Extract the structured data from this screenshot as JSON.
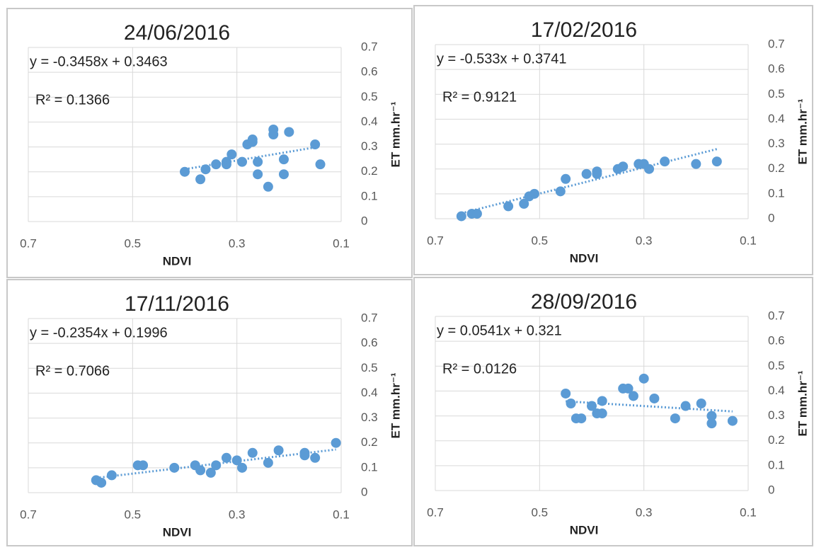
{
  "chart_data": [
    {
      "type": "scatter",
      "title": "24/06/2016",
      "x_label": "NDVI",
      "y_label": "ET  mm.hr⁻¹",
      "annotations": [
        "y = -0.3458x + 0.3463",
        "R² = 0.1366"
      ],
      "color": "#5b9bd5",
      "grid": true,
      "trendline": true,
      "xlim": [
        0.7,
        0.1
      ],
      "xticks": [
        0.7,
        0.5,
        0.3,
        0.1
      ],
      "ylim": [
        0,
        0.7
      ],
      "yticks": [
        0,
        0.1,
        0.2,
        0.3,
        0.4,
        0.5,
        0.6,
        0.7
      ],
      "x": [
        0.4,
        0.37,
        0.36,
        0.34,
        0.32,
        0.32,
        0.31,
        0.29,
        0.28,
        0.27,
        0.27,
        0.26,
        0.26,
        0.23,
        0.23,
        0.24,
        0.21,
        0.21,
        0.2,
        0.15,
        0.14
      ],
      "values": [
        0.2,
        0.17,
        0.21,
        0.23,
        0.24,
        0.23,
        0.27,
        0.24,
        0.31,
        0.32,
        0.33,
        0.19,
        0.24,
        0.35,
        0.37,
        0.14,
        0.19,
        0.25,
        0.36,
        0.31,
        0.23
      ]
    },
    {
      "type": "scatter",
      "title": "17/02/2016",
      "x_label": "NDVI",
      "y_label": "ET  mm.hr⁻¹",
      "annotations": [
        "y = -0.533x + 0.3741",
        "R² = 0.9121"
      ],
      "color": "#5b9bd5",
      "grid": true,
      "trendline": true,
      "xlim": [
        0.7,
        0.1
      ],
      "xticks": [
        0.7,
        0.5,
        0.3,
        0.1
      ],
      "ylim": [
        0,
        0.7
      ],
      "yticks": [
        0,
        0.1,
        0.2,
        0.3,
        0.4,
        0.5,
        0.6,
        0.7
      ],
      "x": [
        0.65,
        0.63,
        0.62,
        0.56,
        0.53,
        0.52,
        0.51,
        0.46,
        0.45,
        0.41,
        0.39,
        0.39,
        0.35,
        0.34,
        0.31,
        0.3,
        0.29,
        0.26,
        0.2,
        0.16
      ],
      "values": [
        0.01,
        0.02,
        0.02,
        0.05,
        0.06,
        0.09,
        0.1,
        0.11,
        0.16,
        0.18,
        0.18,
        0.19,
        0.2,
        0.21,
        0.22,
        0.22,
        0.2,
        0.23,
        0.22,
        0.23
      ]
    },
    {
      "type": "scatter",
      "title": "17/11/2016",
      "x_label": "NDVI",
      "y_label": "ET  mm.hr⁻¹",
      "annotations": [
        "y = -0.2354x + 0.1996",
        "R² = 0.7066"
      ],
      "color": "#5b9bd5",
      "grid": true,
      "trendline": true,
      "xlim": [
        0.7,
        0.1
      ],
      "xticks": [
        0.7,
        0.5,
        0.3,
        0.1
      ],
      "ylim": [
        0,
        0.7
      ],
      "yticks": [
        0,
        0.1,
        0.2,
        0.3,
        0.4,
        0.5,
        0.6,
        0.7
      ],
      "x": [
        0.57,
        0.56,
        0.54,
        0.49,
        0.48,
        0.42,
        0.38,
        0.37,
        0.35,
        0.34,
        0.32,
        0.3,
        0.29,
        0.27,
        0.24,
        0.22,
        0.17,
        0.17,
        0.15,
        0.11
      ],
      "values": [
        0.05,
        0.04,
        0.07,
        0.11,
        0.11,
        0.1,
        0.11,
        0.09,
        0.08,
        0.11,
        0.14,
        0.13,
        0.1,
        0.16,
        0.12,
        0.17,
        0.16,
        0.15,
        0.14,
        0.2
      ]
    },
    {
      "type": "scatter",
      "title": "28/09/2016",
      "x_label": "NDVI",
      "y_label": "ET  mm.hr⁻¹",
      "annotations": [
        "y = 0.0541x + 0.321",
        "R² = 0.0126"
      ],
      "color": "#5b9bd5",
      "grid": true,
      "trendline": true,
      "xlim": [
        0.7,
        0.1
      ],
      "xticks": [
        0.7,
        0.5,
        0.3,
        0.1
      ],
      "ylim": [
        0,
        0.7
      ],
      "yticks": [
        0,
        0.1,
        0.2,
        0.3,
        0.4,
        0.5,
        0.6,
        0.7
      ],
      "x": [
        0.45,
        0.44,
        0.43,
        0.42,
        0.4,
        0.39,
        0.38,
        0.38,
        0.34,
        0.33,
        0.32,
        0.3,
        0.28,
        0.22,
        0.24,
        0.19,
        0.17,
        0.17,
        0.13
      ],
      "values": [
        0.39,
        0.35,
        0.29,
        0.29,
        0.34,
        0.31,
        0.31,
        0.36,
        0.41,
        0.41,
        0.38,
        0.45,
        0.37,
        0.34,
        0.29,
        0.35,
        0.27,
        0.3,
        0.28
      ]
    }
  ]
}
